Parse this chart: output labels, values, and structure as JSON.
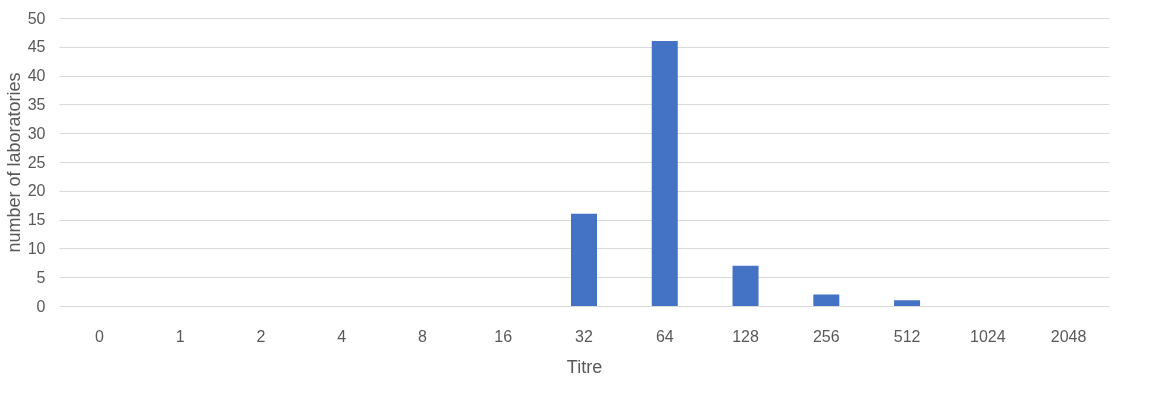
{
  "chart_data": {
    "type": "bar",
    "xlabel": "Titre",
    "ylabel": "number of laboratories",
    "categories": [
      "0",
      "1",
      "2",
      "4",
      "8",
      "16",
      "32",
      "64",
      "128",
      "256",
      "512",
      "1024",
      "2048"
    ],
    "values": [
      0,
      0,
      0,
      0,
      0,
      0,
      16,
      46,
      7,
      2,
      1,
      0,
      0
    ],
    "color": "#4472c4",
    "ylim": [
      0,
      50
    ],
    "yticks": [
      0,
      5,
      10,
      15,
      20,
      25,
      30,
      35,
      40,
      45,
      50
    ],
    "grid": "y"
  }
}
